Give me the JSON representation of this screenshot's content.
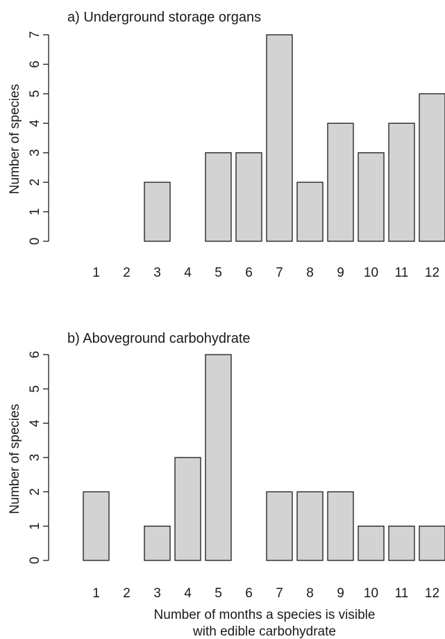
{
  "chart_data": [
    {
      "type": "bar",
      "title": "a) Underground storage organs",
      "ylabel": "Number of species",
      "xlabel": "",
      "categories": [
        "1",
        "2",
        "3",
        "4",
        "5",
        "6",
        "7",
        "8",
        "9",
        "10",
        "11",
        "12"
      ],
      "values": [
        0,
        0,
        2,
        0,
        3,
        3,
        7,
        2,
        4,
        3,
        4,
        5
      ],
      "yticks": [
        "0",
        "1",
        "2",
        "3",
        "4",
        "5",
        "6",
        "7"
      ],
      "ylim": [
        0,
        7
      ],
      "grid": false,
      "bar_color": "#d3d3d3"
    },
    {
      "type": "bar",
      "title": "b) Aboveground carbohydrate",
      "ylabel": "Number of species",
      "xlabel": "Number of months a species is visible with edible carbohydrate",
      "xlabel_lines": [
        "Number of months a species is visible",
        "with edible carbohydrate"
      ],
      "categories": [
        "1",
        "2",
        "3",
        "4",
        "5",
        "6",
        "7",
        "8",
        "9",
        "10",
        "11",
        "12"
      ],
      "values": [
        2,
        0,
        1,
        3,
        6,
        0,
        2,
        2,
        2,
        1,
        1,
        1
      ],
      "yticks": [
        "0",
        "1",
        "2",
        "3",
        "4",
        "5",
        "6"
      ],
      "ylim": [
        0,
        6
      ],
      "grid": false,
      "bar_color": "#d3d3d3"
    }
  ]
}
